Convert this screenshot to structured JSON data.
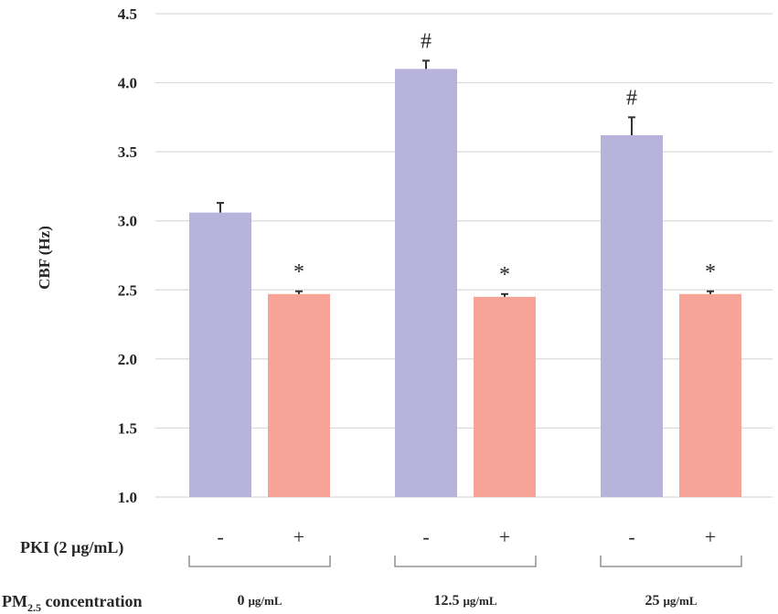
{
  "chart_data": {
    "type": "bar",
    "ylabel": "CBF (Hz)",
    "ylim": [
      1.0,
      4.5
    ],
    "yticks": [
      "1.0",
      "1.5",
      "2.0",
      "2.5",
      "3.0",
      "3.5",
      "4.0",
      "4.5"
    ],
    "grid": true,
    "colors": {
      "minus": "#b8b3da",
      "plus": "#f8a398",
      "error": "#333333",
      "grid": "#d9d9d9"
    },
    "groups": [
      {
        "name_main": "0 ",
        "name_unit": "µg/mL",
        "bars": [
          {
            "pki": "-",
            "value": 3.06,
            "error": 0.07,
            "annotation": ""
          },
          {
            "pki": "+",
            "value": 2.47,
            "error": 0.02,
            "annotation": "*"
          }
        ]
      },
      {
        "name_main": "12.5 ",
        "name_unit": "µg/mL",
        "bars": [
          {
            "pki": "-",
            "value": 4.1,
            "error": 0.06,
            "annotation": "#"
          },
          {
            "pki": "+",
            "value": 2.45,
            "error": 0.02,
            "annotation": "*"
          }
        ]
      },
      {
        "name_main": "25 ",
        "name_unit": "µg/mL",
        "bars": [
          {
            "pki": "-",
            "value": 3.62,
            "error": 0.13,
            "annotation": "#"
          },
          {
            "pki": "+",
            "value": 2.47,
            "error": 0.02,
            "annotation": "*"
          }
        ]
      }
    ],
    "pki_row_label": "PKI (2 µg/mL)",
    "pm_row_label": {
      "prefix": "PM",
      "subscript": "2.5",
      "suffix": " concentration"
    }
  }
}
